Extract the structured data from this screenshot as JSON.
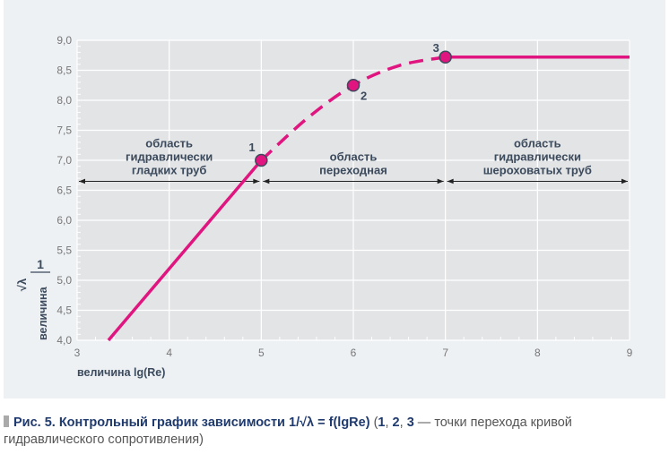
{
  "chart_data": {
    "type": "line",
    "xlabel": "величина lg(Re)",
    "ylabel": "величина",
    "ylabel_fraction": {
      "num": "1",
      "den": "√λ"
    },
    "xlim": [
      3,
      9
    ],
    "ylim": [
      4.0,
      9.0
    ],
    "xticks": [
      "3",
      "4",
      "5",
      "6",
      "7",
      "8",
      "9"
    ],
    "yticks": [
      "4,0",
      "4,5",
      "5,0",
      "5,5",
      "6,0",
      "6,5",
      "7,0",
      "7,5",
      "8,0",
      "8,5",
      "9,0"
    ],
    "grid": true,
    "line_color": "#e0157f",
    "segments": [
      {
        "style": "solid",
        "x": [
          3.34,
          5
        ],
        "y": [
          4.0,
          7.0
        ]
      },
      {
        "style": "dashed",
        "x": [
          5,
          5.5,
          6,
          6.5,
          7
        ],
        "y": [
          7.0,
          7.7,
          8.25,
          8.58,
          8.72
        ]
      },
      {
        "style": "solid",
        "x": [
          7,
          9
        ],
        "y": [
          8.72,
          8.72
        ]
      }
    ],
    "points": [
      {
        "label": "1",
        "x": 5,
        "y": 7.0
      },
      {
        "label": "2",
        "x": 6,
        "y": 8.25
      },
      {
        "label": "3",
        "x": 7,
        "y": 8.72
      }
    ],
    "regions": [
      {
        "lines": [
          "область",
          "гидравлически",
          "гладких труб"
        ],
        "from": 3,
        "to": 5
      },
      {
        "lines": [
          "область",
          "переходная"
        ],
        "from": 5,
        "to": 7
      },
      {
        "lines": [
          "область",
          "гидравлически",
          "шероховатых труб"
        ],
        "from": 7,
        "to": 9
      }
    ],
    "region_arrow_y": 6.65
  },
  "caption": {
    "bold": "Рис. 5. Контрольный график зависимости 1/√λ = f(lgRe)",
    "p1": " (",
    "n1": "1",
    "s1": ", ",
    "n2": "2",
    "s2": ", ",
    "n3": "3",
    "rest": " — точки перехода кривой гидравлического сопротивления)"
  }
}
